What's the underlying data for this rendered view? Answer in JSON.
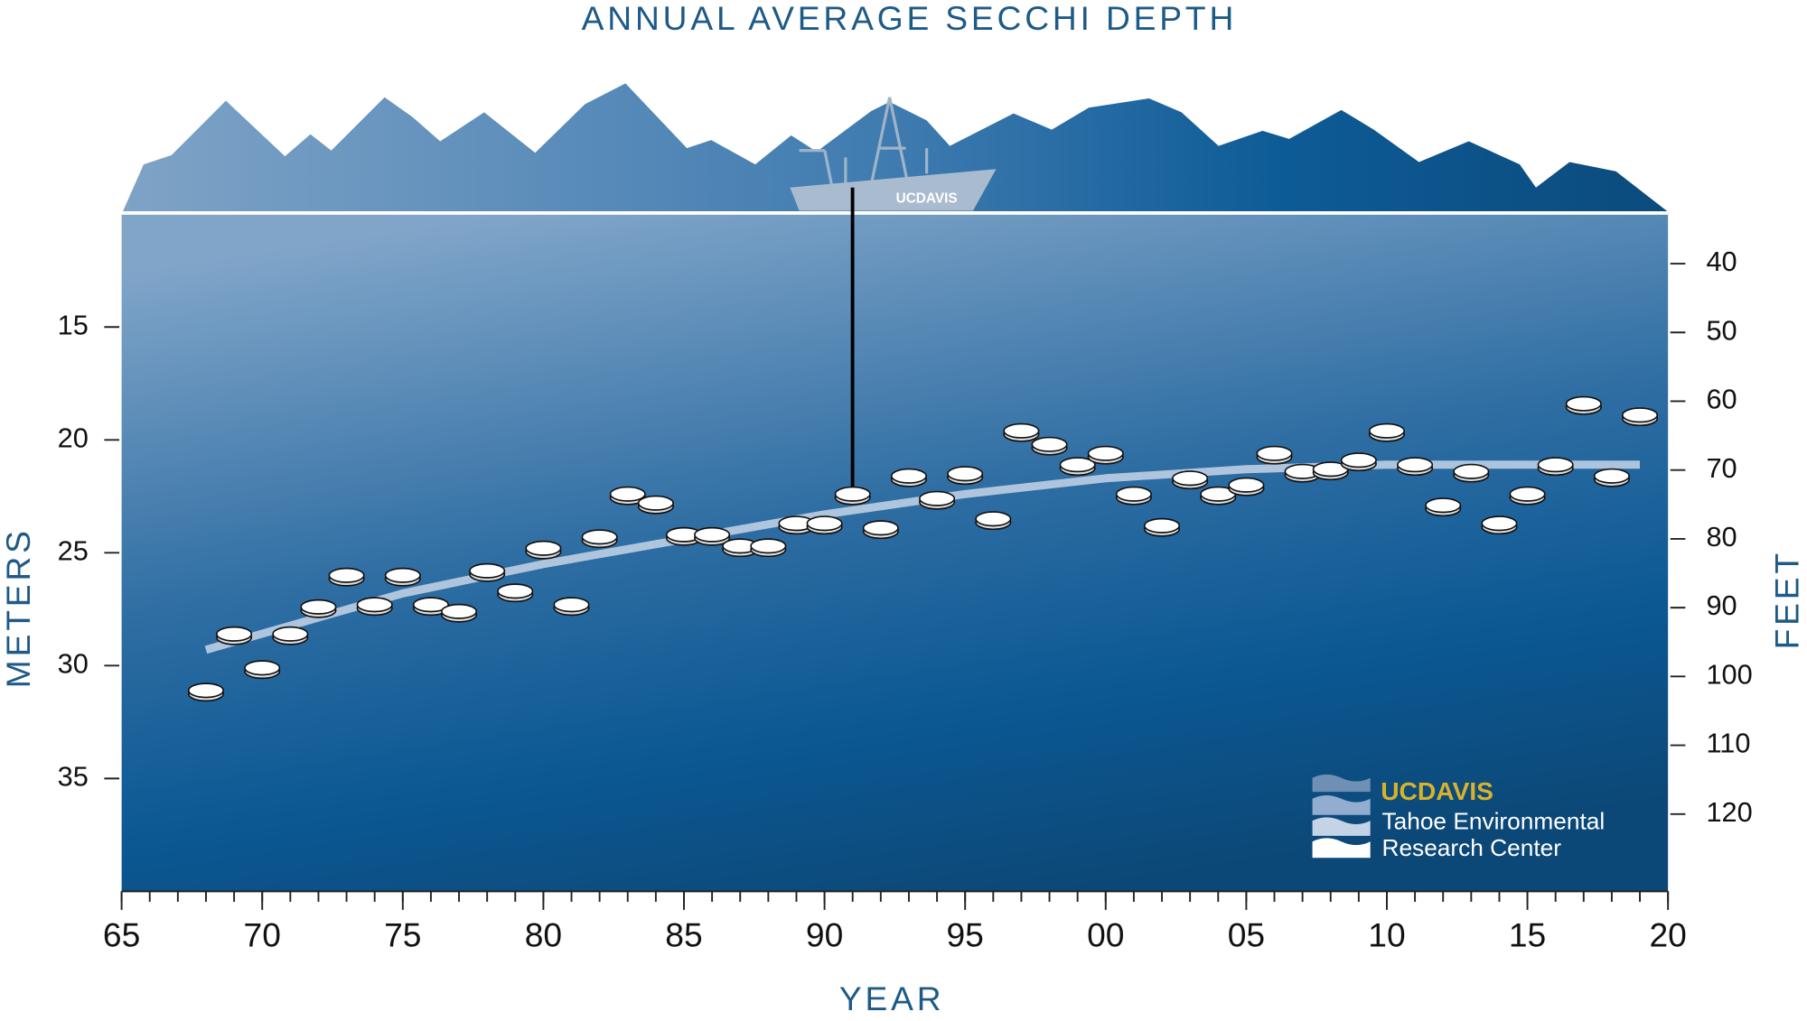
{
  "chart_data": {
    "type": "scatter",
    "title": "ANNUAL AVERAGE SECCHI DEPTH",
    "xlabel": "YEAR",
    "ylabel": "METERS",
    "y2label": "FEET",
    "x": [
      1968,
      1969,
      1970,
      1971,
      1972,
      1973,
      1974,
      1975,
      1976,
      1977,
      1978,
      1979,
      1980,
      1981,
      1982,
      1983,
      1984,
      1985,
      1986,
      1987,
      1988,
      1989,
      1990,
      1991,
      1992,
      1993,
      1994,
      1995,
      1996,
      1997,
      1998,
      1999,
      2000,
      2001,
      2002,
      2003,
      2004,
      2005,
      2006,
      2007,
      2008,
      2009,
      2010,
      2011,
      2012,
      2013,
      2014,
      2015,
      2016,
      2017,
      2018,
      2019
    ],
    "values": [
      31.1,
      28.6,
      30.1,
      28.6,
      27.4,
      26.0,
      27.3,
      26.0,
      27.3,
      27.6,
      25.8,
      26.7,
      24.8,
      27.3,
      24.3,
      22.4,
      22.8,
      24.2,
      24.2,
      24.7,
      24.7,
      23.7,
      23.7,
      22.4,
      23.9,
      21.6,
      22.6,
      21.5,
      23.5,
      19.6,
      20.2,
      21.1,
      20.6,
      22.4,
      23.8,
      21.7,
      22.4,
      22.0,
      20.6,
      21.4,
      21.3,
      20.9,
      19.6,
      21.1,
      22.9,
      21.4,
      23.7,
      22.4,
      21.1,
      18.4,
      21.6,
      18.9
    ],
    "color": "#ffffff",
    "trend": {
      "x": [
        1968,
        1975,
        1980,
        1985,
        1990,
        1995,
        2000,
        2005,
        2010,
        2015,
        2019
      ],
      "values": [
        29.3,
        26.8,
        25.5,
        24.4,
        23.3,
        22.4,
        21.7,
        21.3,
        21.1,
        21.1,
        21.1
      ],
      "color": "#c5d5e8"
    },
    "xlim": [
      1965,
      2020
    ],
    "xticks": [
      {
        "value": 1965,
        "label": "65"
      },
      {
        "value": 1970,
        "label": "70"
      },
      {
        "value": 1975,
        "label": "75"
      },
      {
        "value": 1980,
        "label": "80"
      },
      {
        "value": 1985,
        "label": "85"
      },
      {
        "value": 1990,
        "label": "90"
      },
      {
        "value": 1995,
        "label": "95"
      },
      {
        "value": 2000,
        "label": "00"
      },
      {
        "value": 2005,
        "label": "05"
      },
      {
        "value": 2010,
        "label": "10"
      },
      {
        "value": 2015,
        "label": "15"
      },
      {
        "value": 2020,
        "label": "20"
      }
    ],
    "ylim": [
      10,
      40
    ],
    "y_inverted": true,
    "yticks": [
      15,
      20,
      25,
      30,
      35
    ],
    "y2lim": [
      32.81,
      131.23
    ],
    "y2ticks": [
      40,
      50,
      60,
      70,
      80,
      90,
      100,
      110,
      120
    ],
    "boat_label": "UCDAVIS",
    "logo": {
      "brand": "UCDAVIS",
      "line1": "Tahoe Environmental",
      "line2": "Research Center"
    }
  }
}
